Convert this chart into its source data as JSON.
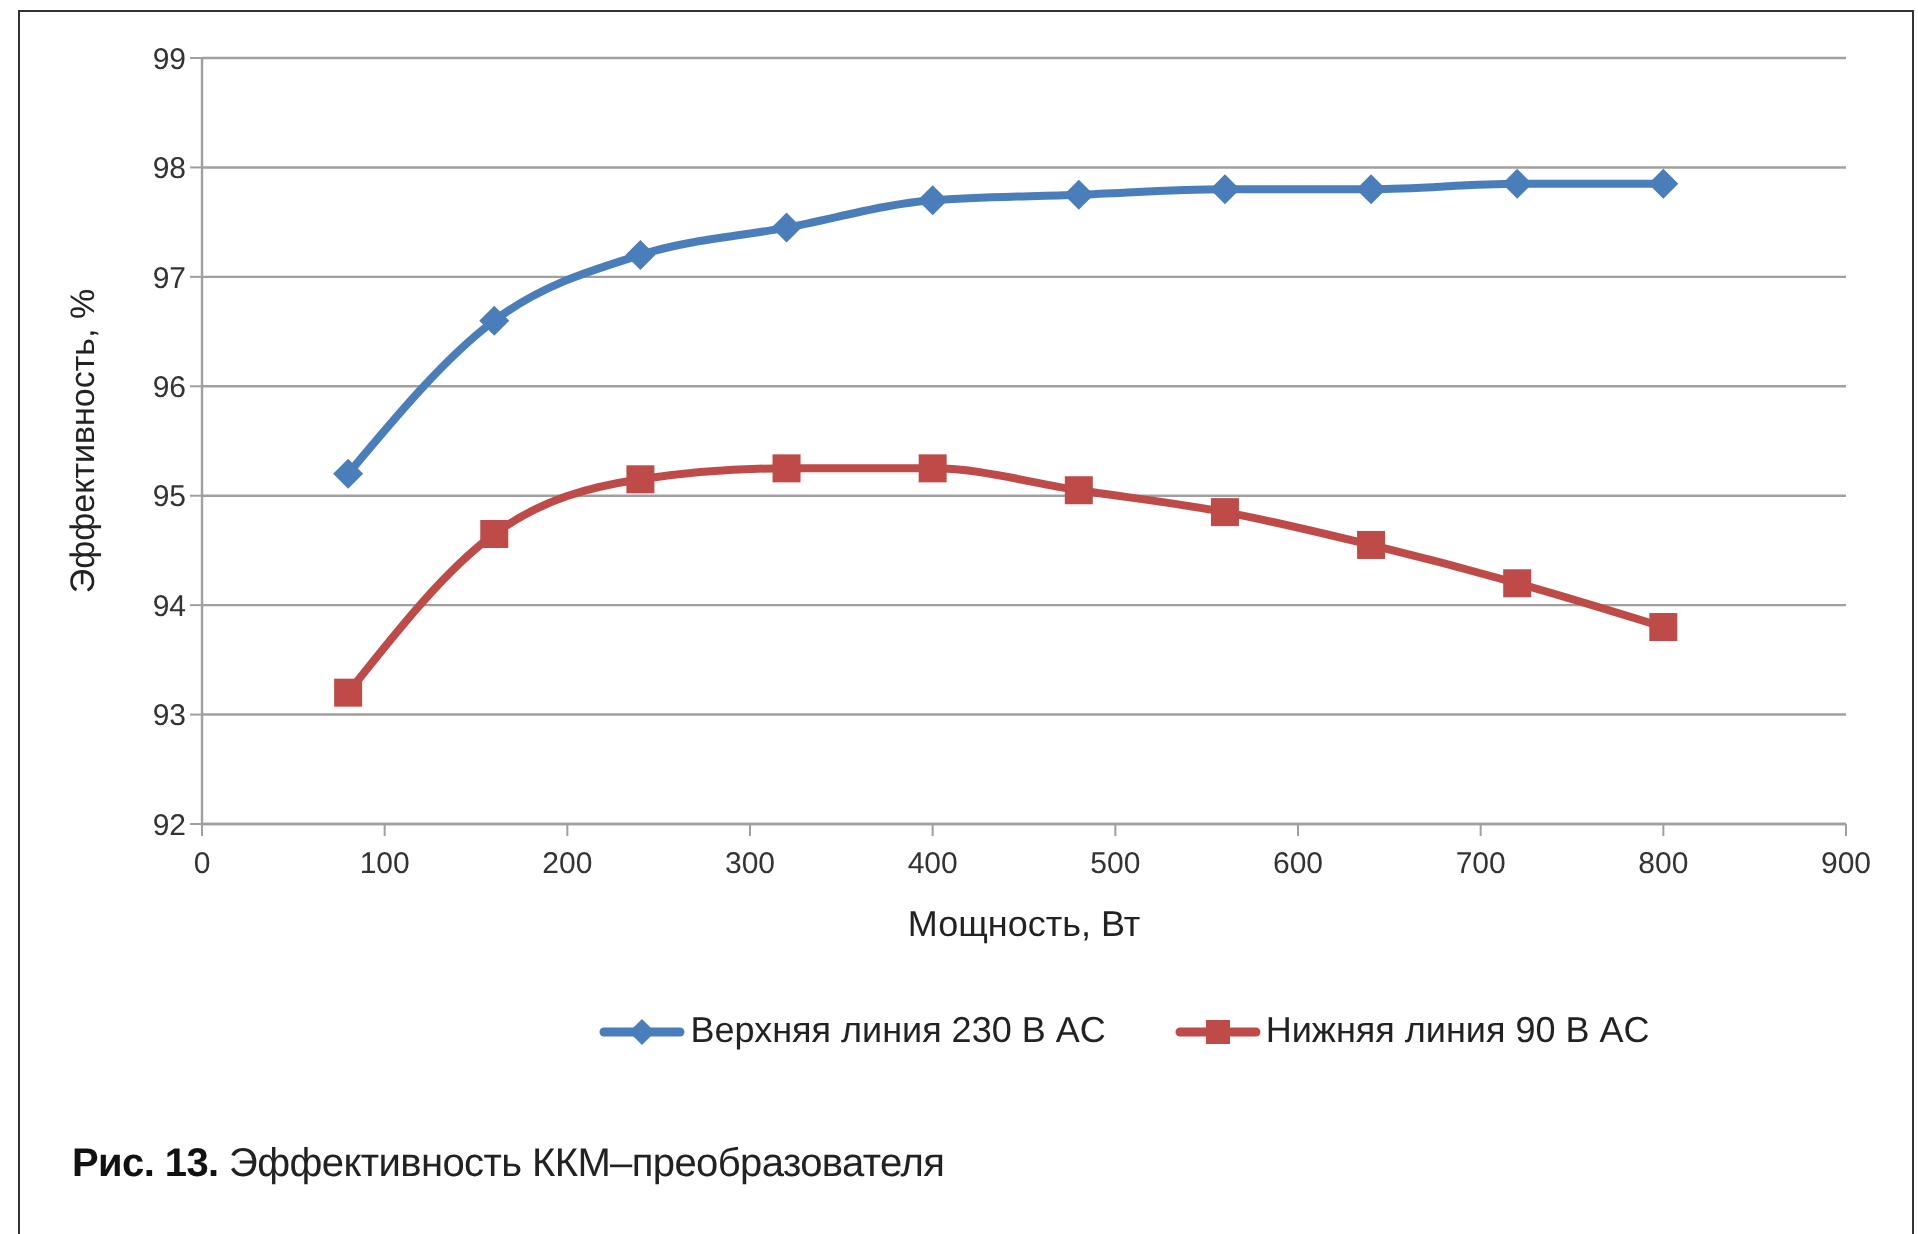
{
  "chart_data": {
    "type": "line",
    "xlabel": "Мощность, Вт",
    "ylabel": "Эффективность, %",
    "x": [
      80,
      160,
      240,
      320,
      400,
      480,
      560,
      640,
      720,
      800
    ],
    "series": [
      {
        "name": "Верхняя линия 230 В AC",
        "color": "#4a7ebb",
        "marker": "diamond",
        "values": [
          95.2,
          96.6,
          97.2,
          97.45,
          97.7,
          97.75,
          97.8,
          97.8,
          97.85,
          97.85
        ]
      },
      {
        "name": "Нижняя линия 90 В AC",
        "color": "#be4b48",
        "marker": "square",
        "values": [
          93.2,
          94.65,
          95.15,
          95.25,
          95.25,
          95.05,
          94.85,
          94.55,
          94.2,
          93.8
        ]
      }
    ],
    "xlim": [
      0,
      900
    ],
    "xticks": [
      0,
      100,
      200,
      300,
      400,
      500,
      600,
      700,
      800,
      900
    ],
    "ylim": [
      92,
      99
    ],
    "yticks": [
      92,
      93,
      94,
      95,
      96,
      97,
      98,
      99
    ],
    "grid": "y",
    "legend": "bottom",
    "annotations": [
      "Рис. 13. Эффективность ККМ–преобразователя"
    ]
  }
}
